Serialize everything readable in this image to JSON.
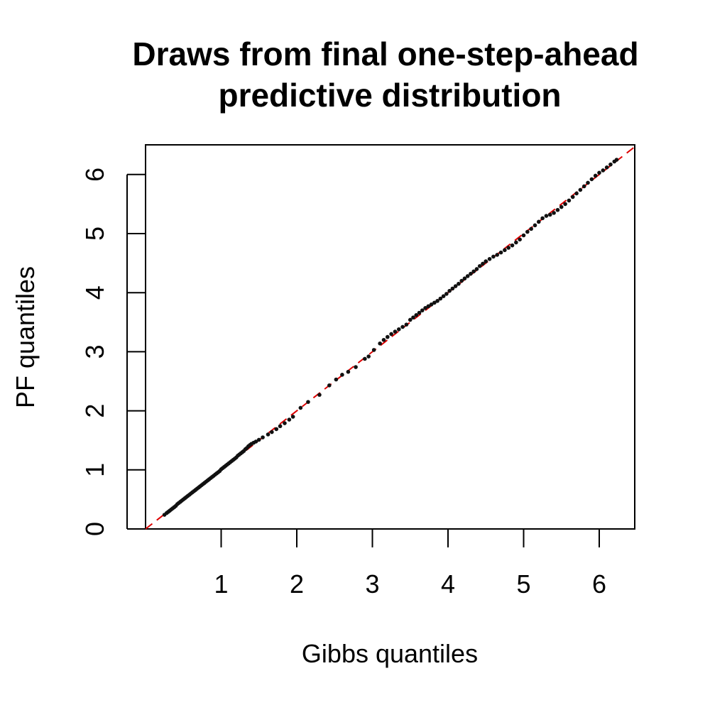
{
  "chart_data": {
    "type": "scatter",
    "title_line1": "Draws from final one-step-ahead",
    "title_line2": "predictive distribution",
    "xlabel": "Gibbs quantiles",
    "ylabel": "PF quantiles",
    "xlim": [
      0,
      6.5
    ],
    "ylim": [
      0,
      6.5
    ],
    "x_ticks": [
      1,
      2,
      3,
      4,
      5,
      6
    ],
    "y_ticks": [
      0,
      1,
      2,
      3,
      4,
      5,
      6
    ],
    "reference_line": {
      "type": "y=x",
      "color": "#dd0000",
      "style": "dashed"
    },
    "point_color": "#111111",
    "points": [
      [
        0.25,
        0.24
      ],
      [
        0.28,
        0.27
      ],
      [
        0.3,
        0.29
      ],
      [
        0.32,
        0.31
      ],
      [
        0.34,
        0.33
      ],
      [
        0.36,
        0.35
      ],
      [
        0.38,
        0.37
      ],
      [
        0.4,
        0.39
      ],
      [
        0.42,
        0.42
      ],
      [
        0.44,
        0.44
      ],
      [
        0.46,
        0.46
      ],
      [
        0.48,
        0.48
      ],
      [
        0.5,
        0.5
      ],
      [
        0.52,
        0.52
      ],
      [
        0.54,
        0.54
      ],
      [
        0.56,
        0.56
      ],
      [
        0.58,
        0.58
      ],
      [
        0.6,
        0.6
      ],
      [
        0.62,
        0.62
      ],
      [
        0.64,
        0.64
      ],
      [
        0.66,
        0.66
      ],
      [
        0.68,
        0.68
      ],
      [
        0.7,
        0.7
      ],
      [
        0.72,
        0.72
      ],
      [
        0.74,
        0.74
      ],
      [
        0.76,
        0.76
      ],
      [
        0.78,
        0.78
      ],
      [
        0.8,
        0.8
      ],
      [
        0.82,
        0.82
      ],
      [
        0.84,
        0.84
      ],
      [
        0.86,
        0.86
      ],
      [
        0.88,
        0.88
      ],
      [
        0.9,
        0.9
      ],
      [
        0.92,
        0.92
      ],
      [
        0.94,
        0.94
      ],
      [
        0.96,
        0.96
      ],
      [
        0.98,
        0.98
      ],
      [
        1.0,
        1.01
      ],
      [
        1.02,
        1.03
      ],
      [
        1.04,
        1.05
      ],
      [
        1.06,
        1.07
      ],
      [
        1.08,
        1.09
      ],
      [
        1.1,
        1.11
      ],
      [
        1.12,
        1.13
      ],
      [
        1.14,
        1.15
      ],
      [
        1.16,
        1.17
      ],
      [
        1.18,
        1.19
      ],
      [
        1.2,
        1.21
      ],
      [
        1.22,
        1.24
      ],
      [
        1.24,
        1.26
      ],
      [
        1.26,
        1.28
      ],
      [
        1.28,
        1.3
      ],
      [
        1.3,
        1.32
      ],
      [
        1.32,
        1.35
      ],
      [
        1.34,
        1.37
      ],
      [
        1.36,
        1.4
      ],
      [
        1.38,
        1.42
      ],
      [
        1.4,
        1.44
      ],
      [
        1.43,
        1.46
      ],
      [
        1.46,
        1.48
      ],
      [
        1.5,
        1.51
      ],
      [
        1.55,
        1.55
      ],
      [
        1.62,
        1.6
      ],
      [
        1.67,
        1.64
      ],
      [
        1.73,
        1.69
      ],
      [
        1.78,
        1.74
      ],
      [
        1.84,
        1.79
      ],
      [
        1.9,
        1.85
      ],
      [
        1.95,
        1.9
      ],
      [
        2.05,
        2.05
      ],
      [
        2.15,
        2.15
      ],
      [
        2.3,
        2.27
      ],
      [
        2.43,
        2.43
      ],
      [
        2.52,
        2.53
      ],
      [
        2.6,
        2.61
      ],
      [
        2.68,
        2.66
      ],
      [
        2.78,
        2.74
      ],
      [
        2.9,
        2.88
      ],
      [
        2.95,
        2.92
      ],
      [
        3.02,
        3.03
      ],
      [
        3.1,
        3.14
      ],
      [
        3.15,
        3.2
      ],
      [
        3.2,
        3.25
      ],
      [
        3.25,
        3.3
      ],
      [
        3.3,
        3.34
      ],
      [
        3.35,
        3.38
      ],
      [
        3.4,
        3.42
      ],
      [
        3.45,
        3.46
      ],
      [
        3.5,
        3.54
      ],
      [
        3.54,
        3.58
      ],
      [
        3.58,
        3.62
      ],
      [
        3.62,
        3.66
      ],
      [
        3.66,
        3.7
      ],
      [
        3.7,
        3.74
      ],
      [
        3.74,
        3.77
      ],
      [
        3.78,
        3.8
      ],
      [
        3.82,
        3.83
      ],
      [
        3.86,
        3.86
      ],
      [
        3.9,
        3.9
      ],
      [
        3.94,
        3.94
      ],
      [
        3.98,
        3.98
      ],
      [
        4.02,
        4.03
      ],
      [
        4.06,
        4.07
      ],
      [
        4.1,
        4.11
      ],
      [
        4.14,
        4.15
      ],
      [
        4.18,
        4.2
      ],
      [
        4.22,
        4.24
      ],
      [
        4.26,
        4.28
      ],
      [
        4.3,
        4.32
      ],
      [
        4.34,
        4.36
      ],
      [
        4.38,
        4.4
      ],
      [
        4.42,
        4.45
      ],
      [
        4.46,
        4.49
      ],
      [
        4.5,
        4.53
      ],
      [
        4.55,
        4.57
      ],
      [
        4.6,
        4.61
      ],
      [
        4.65,
        4.64
      ],
      [
        4.7,
        4.68
      ],
      [
        4.75,
        4.72
      ],
      [
        4.8,
        4.76
      ],
      [
        4.85,
        4.8
      ],
      [
        4.9,
        4.85
      ],
      [
        4.95,
        4.9
      ],
      [
        5.0,
        4.97
      ],
      [
        5.05,
        5.03
      ],
      [
        5.1,
        5.08
      ],
      [
        5.15,
        5.14
      ],
      [
        5.2,
        5.2
      ],
      [
        5.25,
        5.26
      ],
      [
        5.3,
        5.3
      ],
      [
        5.35,
        5.32
      ],
      [
        5.4,
        5.35
      ],
      [
        5.45,
        5.4
      ],
      [
        5.5,
        5.45
      ],
      [
        5.55,
        5.5
      ],
      [
        5.6,
        5.56
      ],
      [
        5.65,
        5.62
      ],
      [
        5.7,
        5.68
      ],
      [
        5.75,
        5.74
      ],
      [
        5.8,
        5.8
      ],
      [
        5.85,
        5.86
      ],
      [
        5.9,
        5.92
      ],
      [
        5.95,
        5.98
      ],
      [
        6.0,
        6.03
      ],
      [
        6.05,
        6.07
      ],
      [
        6.1,
        6.12
      ],
      [
        6.15,
        6.17
      ],
      [
        6.2,
        6.22
      ],
      [
        6.23,
        6.25
      ]
    ]
  }
}
